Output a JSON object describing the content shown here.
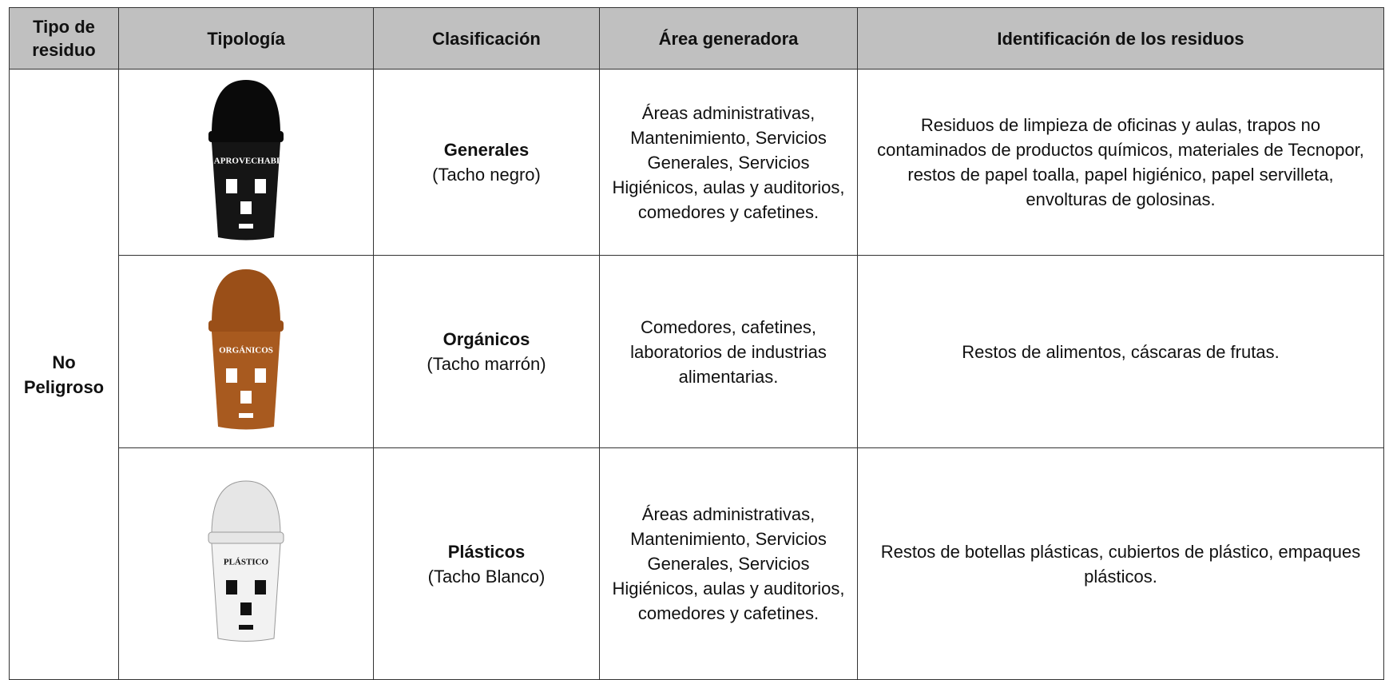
{
  "table": {
    "headers": [
      "Tipo de residuo",
      "Tipología",
      "Clasificación",
      "Área generadora",
      "Identificación de los residuos"
    ],
    "group_label": "No Peligroso",
    "rows": [
      {
        "bin_label": "NO APROVECHABLES",
        "classification": "Generales",
        "bin_name": "(Tacho negro)",
        "area": "Áreas administrativas, Mantenimiento, Servicios Generales, Servicios Higiénicos, aulas y auditorios, comedores y cafetines.",
        "identification": "Residuos de limpieza de oficinas y aulas, trapos no contaminados de productos químicos, materiales de Tecnopor, restos de papel toalla, papel higiénico, papel servilleta, envolturas de golosinas."
      },
      {
        "bin_label": "ORGÁNICOS",
        "classification": "Orgánicos",
        "bin_name": "(Tacho marrón)",
        "area": "Comedores, cafetines, laboratorios de industrias alimentarias.",
        "identification": "Restos de alimentos, cáscaras de frutas."
      },
      {
        "bin_label": "PLÁSTICO",
        "classification": "Plásticos",
        "bin_name": "(Tacho Blanco)",
        "area": "Áreas administrativas, Mantenimiento, Servicios Generales, Servicios Higiénicos, aulas y auditorios, comedores y cafetines.",
        "identification": "Restos de botellas plásticas, cubiertos de plástico, empaques plásticos."
      }
    ]
  }
}
